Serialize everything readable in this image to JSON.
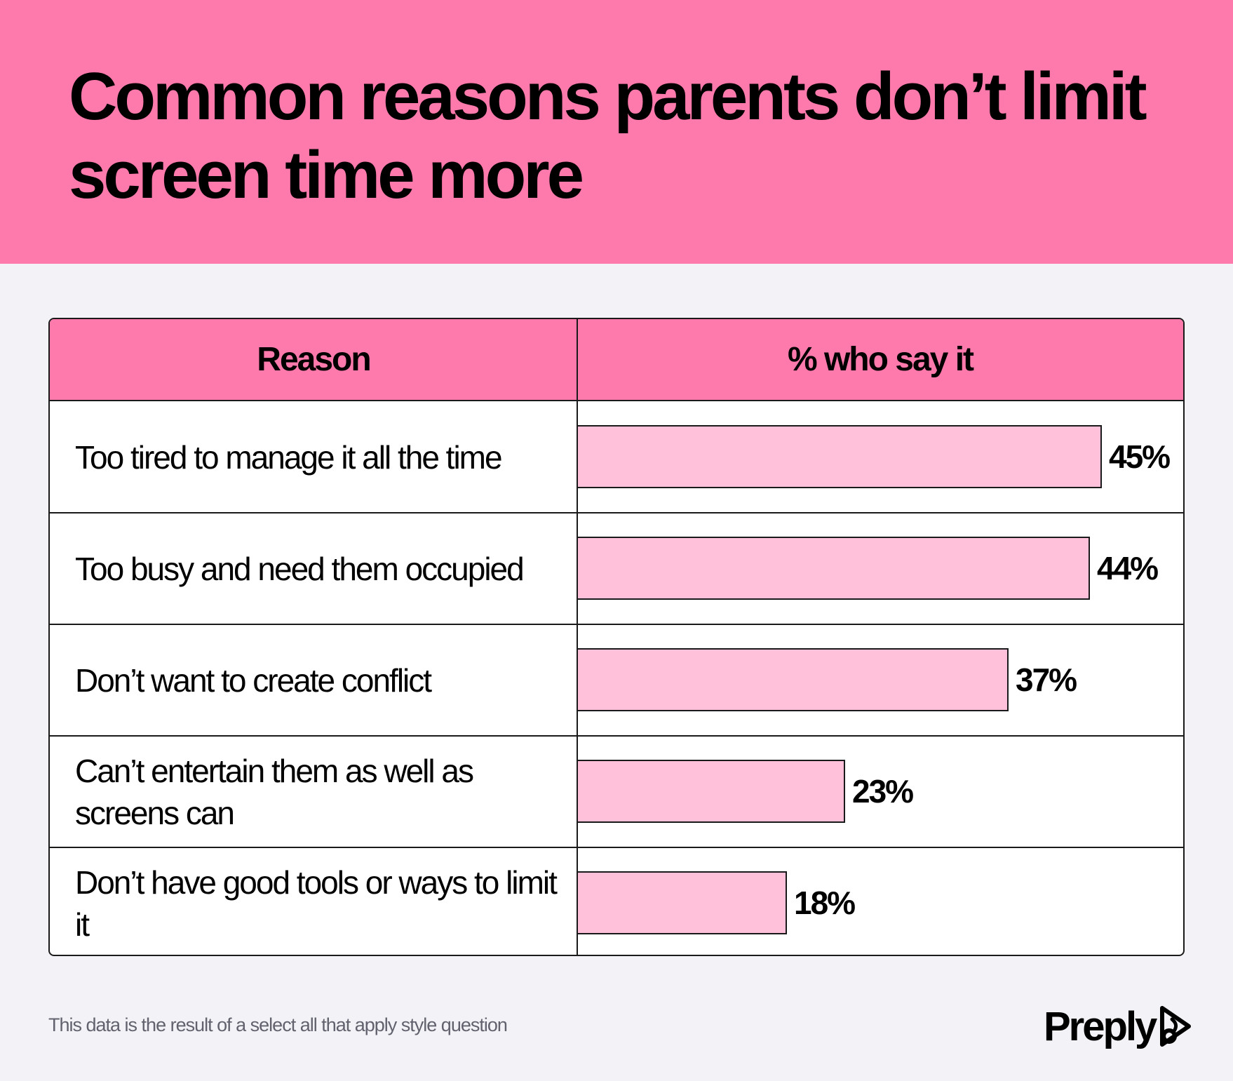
{
  "title": "Common reasons parents don’t limit screen time more",
  "table": {
    "header_reason": "Reason",
    "header_pct": "% who say it"
  },
  "chart_data": {
    "type": "bar",
    "orientation": "horizontal",
    "categories": [
      "Too tired to manage it all the time",
      "Too busy and need them occupied",
      "Don’t want to create conflict",
      "Can’t entertain them as well as screens can",
      "Don’t have good tools or ways to limit it"
    ],
    "values": [
      45,
      44,
      37,
      23,
      18
    ],
    "labels": [
      "45%",
      "44%",
      "37%",
      "23%",
      "18%"
    ],
    "title": "Common reasons parents don’t limit screen time more",
    "xlabel": "% who say it",
    "ylabel": "Reason",
    "xlim": [
      0,
      52
    ],
    "grid": false
  },
  "footnote": "This data is the result of a select all that apply style question",
  "brand": {
    "name": "Preply",
    "logo_icon": "preply-logo-icon"
  },
  "colors": {
    "header": "#ff7aac",
    "bar": "#ffc0da",
    "background": "#f3f3f7"
  }
}
